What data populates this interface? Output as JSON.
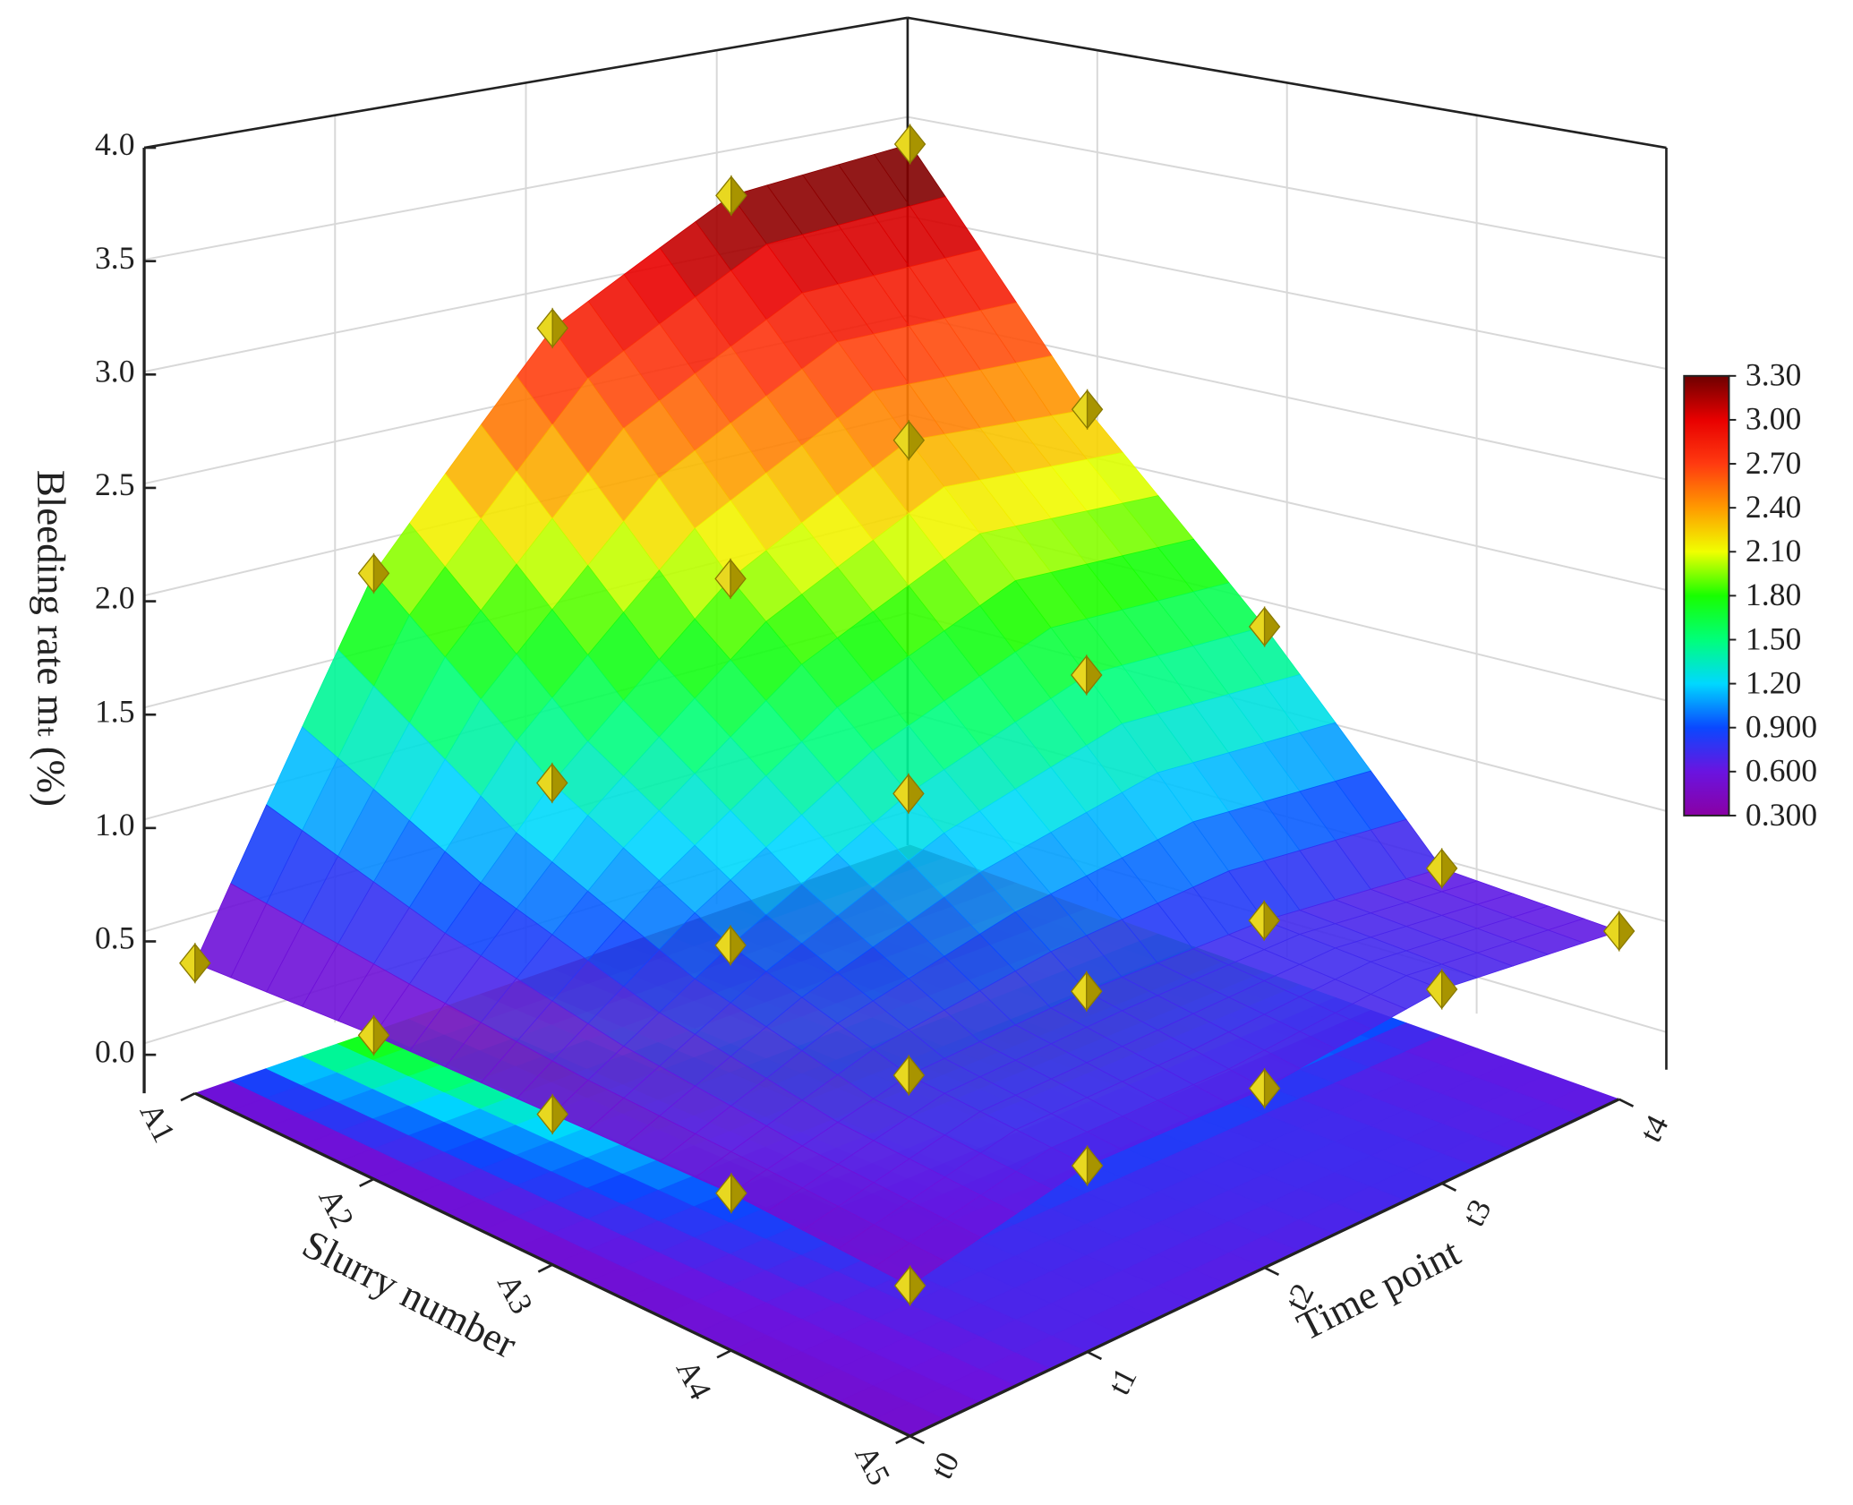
{
  "chart_data": {
    "type": "surface3d",
    "xlabel": "Slurry number",
    "ylabel": "Time point",
    "zlabel": "Bleeding rate mₜ (%)",
    "x_categories": [
      "A1",
      "A2",
      "A3",
      "A4",
      "A5"
    ],
    "y_categories": [
      "t0",
      "t1",
      "t2",
      "t3",
      "t4"
    ],
    "z": [
      [
        0.41,
        1.93,
        2.86,
        3.3,
        3.36
      ],
      [
        0.47,
        1.33,
        2.01,
        2.41,
        2.3
      ],
      [
        0.5,
        0.95,
        1.34,
        1.59,
        1.51
      ],
      [
        0.53,
        0.72,
        0.76,
        0.74,
        0.63
      ],
      [
        0.5,
        0.67,
        0.65,
        0.73,
        0.62
      ]
    ],
    "zlim": [
      -0.17,
      4.0
    ],
    "zticks": [
      {
        "value": 0,
        "label": "0.0"
      },
      0.5,
      {
        "value": 1,
        "label": "1.0"
      },
      1.5,
      {
        "value": 2,
        "label": "2.0"
      },
      2.5,
      {
        "value": 3,
        "label": "3.0"
      },
      3.5,
      {
        "value": 4,
        "label": "4.0"
      }
    ],
    "clim": [
      0.3,
      3.3
    ],
    "cticks": [
      {
        "value": 0.3,
        "label": "0.300"
      },
      {
        "value": 0.6,
        "label": "0.600"
      },
      {
        "value": 0.9,
        "label": "0.900"
      },
      {
        "value": 1.2,
        "label": "1.20"
      },
      {
        "value": 1.5,
        "label": "1.50"
      },
      {
        "value": 1.8,
        "label": "1.80"
      },
      {
        "value": 2.1,
        "label": "2.10"
      },
      {
        "value": 2.4,
        "label": "2.40"
      },
      {
        "value": 2.7,
        "label": "2.70"
      },
      {
        "value": 3.0,
        "label": "3.00"
      },
      {
        "value": 3.3,
        "label": "3.30"
      }
    ],
    "colormap": [
      "#8a00a4",
      "#6a14e0",
      "#0a48ff",
      "#00d8ff",
      "#00ff7a",
      "#18ff00",
      "#f0ff00",
      "#ff9a00",
      "#ff3a10",
      "#e80000",
      "#6e0000"
    ],
    "marker_color": "#e8d820",
    "grid": true
  }
}
